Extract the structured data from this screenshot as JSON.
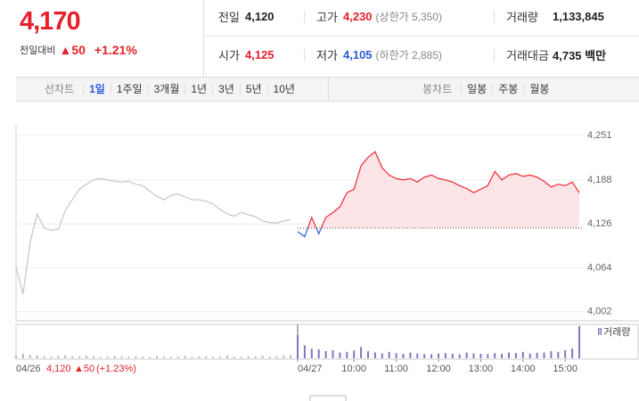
{
  "header": {
    "price": "4,170",
    "change_label": "전일대비",
    "change": "▲50",
    "change_rate": "+1.21%",
    "color": "#e5202b"
  },
  "summary": {
    "rows": [
      [
        {
          "label": "전일",
          "value": "4,120"
        },
        {
          "label": "고가",
          "value": "4,230",
          "color": "#e5202b",
          "note": "(상한가 5,350)"
        },
        {
          "label": "거래량",
          "value": "1,133,845"
        }
      ],
      [
        {
          "label": "시가",
          "value": "4,125",
          "color": "#e5202b"
        },
        {
          "label": "저가",
          "value": "4,105",
          "color": "#2a5bd7",
          "note": "(하한가 2,885)"
        },
        {
          "label": "거래대금",
          "value": "4,735 백만"
        }
      ]
    ]
  },
  "tabs": {
    "line_title": "선차트",
    "line_items": [
      "1일",
      "1주일",
      "3개월",
      "1년",
      "3년",
      "5년",
      "10년"
    ],
    "selected": 0,
    "candle_title": "봉차트",
    "candle_items": [
      "일봉",
      "주봉",
      "월봉"
    ]
  },
  "chart_data": [
    {
      "type": "line",
      "categories": [
        null,
        null,
        null,
        null,
        null,
        null,
        null,
        null,
        null,
        null,
        null,
        null,
        null,
        null,
        null,
        null,
        null,
        null,
        null,
        null,
        null,
        null,
        null,
        null,
        null,
        null,
        null,
        null,
        null,
        null,
        null,
        null,
        null,
        null,
        null,
        null,
        null,
        null,
        null,
        null,
        "04/27",
        null,
        null,
        null,
        null,
        null,
        null,
        null,
        "10:00",
        null,
        null,
        null,
        null,
        null,
        "11:00",
        null,
        null,
        null,
        null,
        null,
        "12:00",
        null,
        null,
        null,
        null,
        null,
        "13:00",
        null,
        null,
        null,
        null,
        null,
        "14:00",
        null,
        null,
        null,
        null,
        null,
        "15:00",
        null,
        null
      ],
      "series": [
        {
          "color": "#c6c6c6",
          "values": [
            4065,
            4027,
            4100,
            4140,
            4120,
            4117,
            4118,
            4145,
            4160,
            4175,
            4182,
            4188,
            4190,
            4188,
            4186,
            4185,
            4186,
            4182,
            4180,
            4172,
            4165,
            4160,
            4166,
            4168,
            4164,
            4160,
            4160,
            4158,
            4154,
            4146,
            4140,
            4137,
            4142,
            4139,
            4136,
            4130,
            4128,
            4127,
            4130,
            4132,
            null,
            null,
            null,
            null,
            null,
            null,
            null,
            null,
            null,
            null,
            null,
            null,
            null,
            null,
            null,
            null,
            null,
            null,
            null,
            null,
            null,
            null,
            null,
            null,
            null,
            null,
            null,
            null,
            null,
            null,
            null,
            null,
            null,
            null,
            null,
            null,
            null,
            null,
            null,
            null,
            null
          ]
        },
        {
          "color": "#ee2a33",
          "below_color": "#2b5fd9",
          "fill": "#fde4e7",
          "values": [
            null,
            null,
            null,
            null,
            null,
            null,
            null,
            null,
            null,
            null,
            null,
            null,
            null,
            null,
            null,
            null,
            null,
            null,
            null,
            null,
            null,
            null,
            null,
            null,
            null,
            null,
            null,
            null,
            null,
            null,
            null,
            null,
            null,
            null,
            null,
            null,
            null,
            null,
            null,
            null,
            4115,
            4108,
            4135,
            4112,
            4135,
            4142,
            4150,
            4170,
            4175,
            4208,
            4220,
            4228,
            4205,
            4195,
            4190,
            4188,
            4190,
            4185,
            4192,
            4195,
            4190,
            4188,
            4185,
            4180,
            4176,
            4170,
            4175,
            4180,
            4200,
            4188,
            4195,
            4197,
            4193,
            4195,
            4192,
            4186,
            4178,
            4182,
            4180,
            4185,
            4170
          ]
        }
      ],
      "reference": 4120,
      "reference_color": "#555555",
      "ylim": [
        3989,
        4266
      ],
      "yticks": [
        {
          "value": 4002,
          "label": "4,002"
        },
        {
          "value": 4064,
          "label": "4,064"
        },
        {
          "value": 4126,
          "label": "4,126"
        },
        {
          "value": 4188,
          "label": "4,188"
        },
        {
          "value": 4251,
          "label": "4,251"
        }
      ],
      "grid": true
    },
    {
      "type": "bar",
      "title": "거래량",
      "ylim": [
        0,
        100
      ],
      "series": [
        {
          "color": "#b5b5b5",
          "values": [
            8,
            14,
            10,
            9,
            6,
            5,
            7,
            9,
            6,
            5,
            8,
            6,
            4,
            5,
            7,
            5,
            4,
            6,
            5,
            4,
            6,
            5,
            4,
            5,
            7,
            4,
            5,
            6,
            4,
            5,
            8,
            5,
            4,
            6,
            5,
            7,
            5,
            6,
            8,
            10,
            null,
            null,
            null,
            null,
            null,
            null,
            null,
            null,
            null,
            null,
            null,
            null,
            null,
            null,
            null,
            null,
            null,
            null,
            null,
            null,
            null,
            null,
            null,
            null,
            null,
            null,
            null,
            null,
            null,
            null,
            null,
            null,
            null,
            null,
            null,
            null,
            null,
            null,
            null,
            null,
            null
          ]
        },
        {
          "color": "#7f78c8",
          "values": [
            null,
            null,
            null,
            null,
            null,
            null,
            null,
            null,
            null,
            null,
            null,
            null,
            null,
            null,
            null,
            null,
            null,
            null,
            null,
            null,
            null,
            null,
            null,
            null,
            null,
            null,
            null,
            null,
            null,
            null,
            null,
            null,
            null,
            null,
            null,
            null,
            null,
            null,
            null,
            null,
            72,
            40,
            30,
            28,
            22,
            25,
            18,
            20,
            24,
            35,
            22,
            18,
            15,
            20,
            16,
            14,
            18,
            15,
            13,
            12,
            15,
            16,
            14,
            12,
            18,
            15,
            14,
            13,
            16,
            14,
            18,
            16,
            20,
            15,
            17,
            18,
            22,
            20,
            25,
            30,
            100
          ]
        }
      ]
    }
  ],
  "footer": {
    "date": "04/26",
    "price": "4,120",
    "change": "▲50",
    "change_rate": "(+1.23%)",
    "color": "#e5202b"
  }
}
